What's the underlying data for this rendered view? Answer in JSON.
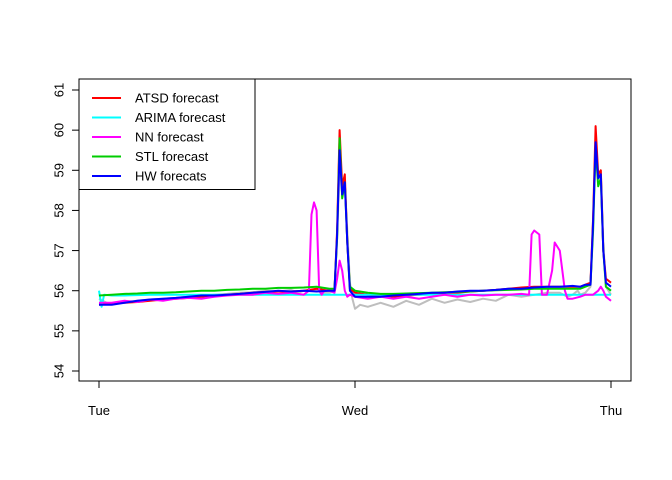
{
  "chart_data": {
    "type": "line",
    "title": "",
    "xlabel": "",
    "ylabel": "",
    "x_ticks": [
      "Tue",
      "Wed",
      "Thu"
    ],
    "x_range": [
      0,
      2
    ],
    "ylim": [
      54,
      61
    ],
    "y_ticks": [
      54,
      55,
      56,
      57,
      58,
      59,
      60,
      61
    ],
    "grid": false,
    "legend_position": "top-left",
    "actual_color": "#bebebe",
    "actual": {
      "x": [
        0.0,
        0.03,
        0.05,
        0.1,
        0.15,
        0.2,
        0.25,
        0.3,
        0.35,
        0.4,
        0.45,
        0.5,
        0.55,
        0.6,
        0.65,
        0.7,
        0.75,
        0.78,
        0.8,
        0.83,
        0.85,
        0.88,
        0.9,
        0.92,
        0.93,
        0.94,
        0.95,
        0.96,
        0.97,
        0.98,
        0.99,
        1.0,
        1.02,
        1.05,
        1.1,
        1.15,
        1.2,
        1.25,
        1.3,
        1.35,
        1.4,
        1.45,
        1.5,
        1.55,
        1.6,
        1.65,
        1.7,
        1.75,
        1.8,
        1.83,
        1.85,
        1.87,
        1.88,
        1.9,
        1.92,
        1.93,
        1.94,
        1.95,
        1.96,
        1.97,
        1.98,
        1.99,
        2.0
      ],
      "y": [
        55.8,
        55.7,
        55.68,
        55.72,
        55.75,
        55.78,
        55.8,
        55.82,
        55.85,
        55.86,
        55.9,
        55.92,
        55.95,
        55.96,
        56.0,
        55.98,
        56.02,
        55.95,
        56.0,
        56.0,
        56.0,
        55.95,
        55.95,
        56.0,
        57.3,
        59.1,
        58.4,
        58.6,
        57.5,
        56.2,
        55.8,
        55.55,
        55.65,
        55.6,
        55.7,
        55.6,
        55.75,
        55.65,
        55.8,
        55.7,
        55.78,
        55.72,
        55.8,
        55.75,
        55.9,
        55.85,
        55.9,
        55.95,
        55.95,
        55.85,
        55.9,
        56.0,
        55.9,
        55.95,
        56.1,
        57.8,
        59.4,
        58.8,
        59.0,
        57.2,
        56.1,
        56.0,
        55.9
      ]
    },
    "series": [
      {
        "name": "ATSD forecast",
        "color": "#ff0000",
        "x": [
          0.0,
          0.05,
          0.1,
          0.15,
          0.2,
          0.25,
          0.3,
          0.35,
          0.4,
          0.45,
          0.5,
          0.55,
          0.6,
          0.65,
          0.7,
          0.75,
          0.8,
          0.85,
          0.9,
          0.92,
          0.93,
          0.94,
          0.95,
          0.96,
          0.97,
          0.98,
          1.0,
          1.05,
          1.1,
          1.15,
          1.2,
          1.25,
          1.3,
          1.35,
          1.4,
          1.45,
          1.5,
          1.55,
          1.6,
          1.65,
          1.7,
          1.75,
          1.8,
          1.85,
          1.88,
          1.9,
          1.92,
          1.93,
          1.94,
          1.95,
          1.96,
          1.97,
          1.98,
          2.0
        ],
        "y": [
          55.65,
          55.68,
          55.7,
          55.72,
          55.75,
          55.78,
          55.8,
          55.82,
          55.85,
          55.88,
          55.9,
          55.92,
          55.95,
          55.97,
          55.98,
          55.98,
          56.0,
          56.05,
          56.0,
          56.0,
          57.5,
          60.0,
          58.6,
          58.9,
          57.2,
          56.05,
          55.95,
          55.9,
          55.88,
          55.85,
          55.88,
          55.9,
          55.92,
          55.95,
          55.95,
          55.98,
          56.0,
          56.02,
          56.05,
          56.08,
          56.1,
          56.1,
          56.1,
          56.1,
          56.1,
          56.15,
          56.2,
          57.8,
          60.1,
          58.9,
          59.0,
          57.0,
          56.3,
          56.2
        ]
      },
      {
        "name": "ARIMA forecast",
        "color": "#00ffff",
        "x": [
          0.0,
          0.01,
          0.02,
          0.05,
          0.1,
          0.2,
          0.3,
          0.4,
          0.5,
          0.6,
          0.7,
          0.8,
          0.9,
          1.0,
          1.1,
          1.2,
          1.3,
          1.4,
          1.5,
          1.6,
          1.7,
          1.8,
          1.9,
          2.0
        ],
        "y": [
          56.0,
          55.6,
          55.9,
          55.88,
          55.88,
          55.9,
          55.9,
          55.9,
          55.9,
          55.9,
          55.9,
          55.9,
          55.9,
          55.9,
          55.9,
          55.9,
          55.9,
          55.9,
          55.9,
          55.9,
          55.9,
          55.9,
          55.9,
          55.9
        ]
      },
      {
        "name": "NN forecast",
        "color": "#ff00ff",
        "x": [
          0.0,
          0.05,
          0.1,
          0.15,
          0.2,
          0.25,
          0.3,
          0.35,
          0.4,
          0.45,
          0.5,
          0.55,
          0.6,
          0.65,
          0.7,
          0.75,
          0.8,
          0.82,
          0.83,
          0.84,
          0.85,
          0.86,
          0.87,
          0.88,
          0.9,
          0.92,
          0.93,
          0.94,
          0.95,
          0.96,
          0.97,
          0.98,
          1.0,
          1.05,
          1.1,
          1.15,
          1.2,
          1.25,
          1.3,
          1.35,
          1.4,
          1.45,
          1.5,
          1.55,
          1.6,
          1.65,
          1.68,
          1.69,
          1.7,
          1.72,
          1.73,
          1.75,
          1.77,
          1.78,
          1.8,
          1.82,
          1.83,
          1.85,
          1.88,
          1.9,
          1.93,
          1.95,
          1.96,
          1.97,
          1.98,
          2.0
        ],
        "y": [
          55.7,
          55.7,
          55.75,
          55.72,
          55.78,
          55.75,
          55.8,
          55.82,
          55.8,
          55.85,
          55.88,
          55.9,
          55.9,
          55.95,
          55.92,
          55.95,
          55.9,
          56.0,
          57.9,
          58.2,
          58.0,
          56.0,
          55.9,
          56.0,
          56.0,
          55.95,
          56.3,
          56.75,
          56.5,
          56.0,
          55.85,
          55.9,
          55.85,
          55.8,
          55.85,
          55.8,
          55.85,
          55.8,
          55.85,
          55.9,
          55.85,
          55.9,
          55.88,
          55.9,
          55.9,
          55.92,
          55.9,
          57.4,
          57.5,
          57.4,
          55.9,
          55.9,
          56.5,
          57.2,
          57.0,
          56.0,
          55.8,
          55.8,
          55.85,
          55.9,
          55.9,
          56.0,
          56.1,
          56.0,
          55.85,
          55.75
        ]
      },
      {
        "name": "STL forecast",
        "color": "#00cd00",
        "x": [
          0.0,
          0.05,
          0.1,
          0.15,
          0.2,
          0.25,
          0.3,
          0.35,
          0.4,
          0.45,
          0.5,
          0.55,
          0.6,
          0.65,
          0.7,
          0.75,
          0.8,
          0.85,
          0.9,
          0.92,
          0.93,
          0.94,
          0.95,
          0.96,
          0.97,
          0.98,
          1.0,
          1.05,
          1.1,
          1.15,
          1.2,
          1.25,
          1.3,
          1.35,
          1.4,
          1.45,
          1.5,
          1.55,
          1.6,
          1.65,
          1.7,
          1.75,
          1.8,
          1.85,
          1.88,
          1.9,
          1.92,
          1.93,
          1.94,
          1.95,
          1.96,
          1.97,
          1.98,
          2.0
        ],
        "y": [
          55.88,
          55.9,
          55.92,
          55.93,
          55.95,
          55.95,
          55.96,
          55.98,
          56.0,
          56.0,
          56.02,
          56.03,
          56.05,
          56.05,
          56.07,
          56.07,
          56.08,
          56.1,
          56.05,
          56.05,
          57.3,
          59.8,
          58.3,
          58.7,
          57.2,
          56.1,
          56.0,
          55.95,
          55.92,
          55.92,
          55.93,
          55.94,
          55.95,
          55.96,
          55.97,
          55.98,
          56.0,
          56.01,
          56.02,
          56.03,
          56.05,
          56.05,
          56.05,
          56.05,
          56.05,
          56.1,
          56.15,
          57.5,
          59.6,
          58.6,
          58.8,
          57.0,
          56.1,
          56.0
        ]
      },
      {
        "name": "HW forecats",
        "color": "#0000ff",
        "x": [
          0.0,
          0.05,
          0.1,
          0.15,
          0.2,
          0.25,
          0.3,
          0.35,
          0.4,
          0.45,
          0.5,
          0.55,
          0.6,
          0.65,
          0.7,
          0.75,
          0.8,
          0.85,
          0.9,
          0.92,
          0.93,
          0.94,
          0.95,
          0.96,
          0.97,
          0.98,
          1.0,
          1.05,
          1.1,
          1.15,
          1.2,
          1.25,
          1.3,
          1.35,
          1.4,
          1.45,
          1.5,
          1.55,
          1.6,
          1.65,
          1.7,
          1.75,
          1.8,
          1.85,
          1.88,
          1.9,
          1.92,
          1.93,
          1.94,
          1.95,
          1.96,
          1.97,
          1.98,
          2.0
        ],
        "y": [
          55.65,
          55.65,
          55.7,
          55.75,
          55.78,
          55.8,
          55.82,
          55.85,
          55.88,
          55.88,
          55.9,
          55.92,
          55.95,
          55.97,
          56.0,
          55.98,
          56.0,
          55.98,
          56.0,
          56.0,
          57.4,
          59.5,
          58.4,
          58.7,
          57.2,
          56.0,
          55.85,
          55.85,
          55.85,
          55.88,
          55.9,
          55.92,
          55.95,
          55.95,
          55.98,
          56.0,
          56.0,
          56.02,
          56.05,
          56.05,
          56.08,
          56.1,
          56.1,
          56.12,
          56.1,
          56.15,
          56.15,
          57.7,
          59.7,
          58.8,
          58.9,
          57.0,
          56.2,
          56.1
        ]
      }
    ]
  }
}
